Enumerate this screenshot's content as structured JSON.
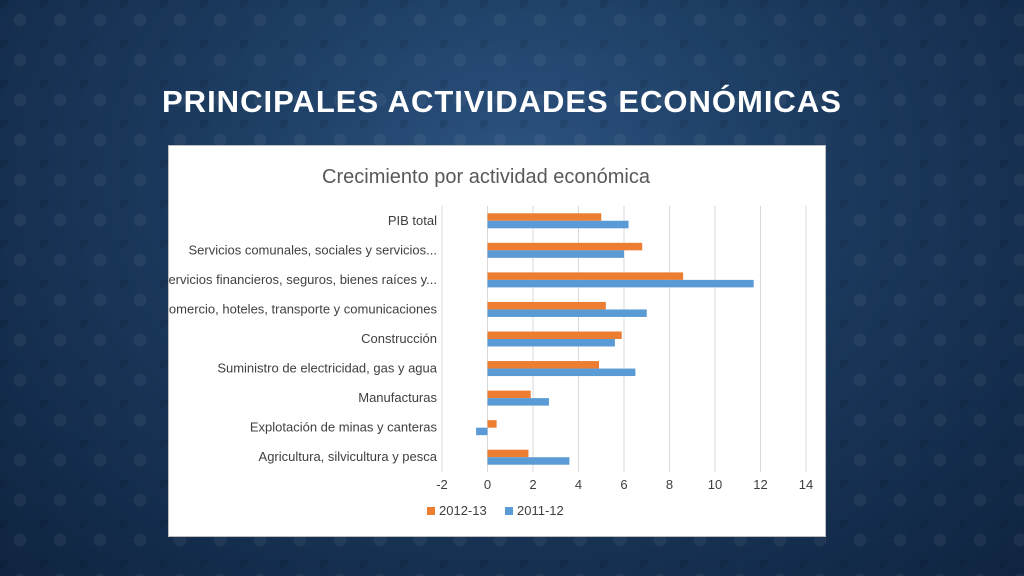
{
  "slide": {
    "title": "PRINCIPALES ACTIVIDADES ECONÓMICAS"
  },
  "colors": {
    "series_2012_13": "#ed7d31",
    "series_2011_12": "#5b9bd5",
    "gridline": "#d9d9d9"
  },
  "chart_data": {
    "type": "bar",
    "orientation": "horizontal",
    "title": "Crecimiento por actividad económica",
    "categories": [
      "PIB total",
      "Servicios comunales, sociales y servicios...",
      "Servicios financieros, seguros, bienes raíces y...",
      "Comercio, hoteles, transporte y comunicaciones",
      "Construcción",
      "Suministro de electricidad, gas y agua",
      "Manufacturas",
      "Explotación de minas y canteras",
      "Agricultura, silvicultura y pesca"
    ],
    "series": [
      {
        "name": "2012-13",
        "values": [
          5.0,
          6.8,
          8.6,
          5.2,
          5.9,
          4.9,
          1.9,
          0.4,
          1.8
        ]
      },
      {
        "name": "2011-12",
        "values": [
          6.2,
          6.0,
          11.7,
          7.0,
          5.6,
          6.5,
          2.7,
          -0.5,
          3.6
        ]
      }
    ],
    "xlim": [
      -2,
      14
    ],
    "xticks": [
      "-2",
      "0",
      "2",
      "4",
      "6",
      "8",
      "10",
      "12",
      "14"
    ],
    "grid": true,
    "legend_position": "bottom"
  }
}
